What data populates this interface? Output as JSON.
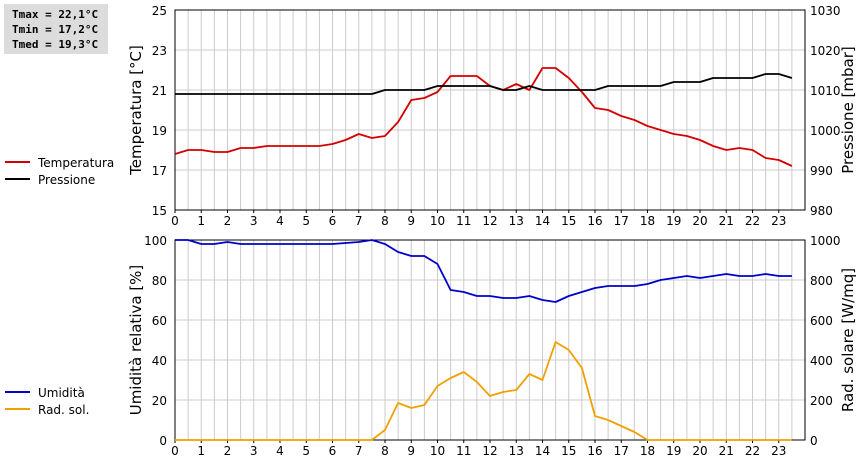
{
  "stats": {
    "tmax": "Tmax = 22,1°C",
    "tmin": "Tmin = 17,2°C",
    "tmed": "Tmed = 19,3°C"
  },
  "colors": {
    "temperatura": "#d40000",
    "pressione": "#000000",
    "umidita": "#0000c8",
    "radiazione": "#f0a000",
    "grid": "#cccccc"
  },
  "chart_data": [
    {
      "type": "line",
      "x_ticks": [
        "0",
        "1",
        "2",
        "3",
        "4",
        "5",
        "6",
        "7",
        "8",
        "9",
        "10",
        "11",
        "12",
        "13",
        "14",
        "15",
        "16",
        "17",
        "18",
        "19",
        "20",
        "21",
        "22",
        "23"
      ],
      "xlim": [
        0,
        24
      ],
      "ylabel": "Temperatura [°C]",
      "ylim": [
        15,
        25
      ],
      "y_ticks": [
        "15",
        "17",
        "19",
        "21",
        "23",
        "25"
      ],
      "y2label": "Pressione [mbar]",
      "y2lim": [
        980,
        1030
      ],
      "y2_ticks": [
        "980",
        "990",
        "1000",
        "1010",
        "1020",
        "1030"
      ],
      "legend": [
        "Temperatura",
        "Pressione"
      ],
      "series": [
        {
          "name": "Temperatura",
          "axis": "left",
          "x": [
            0,
            0.5,
            1,
            1.5,
            2,
            2.5,
            3,
            3.5,
            4,
            4.5,
            5,
            5.5,
            6,
            6.5,
            7,
            7.5,
            8,
            8.5,
            9,
            9.5,
            10,
            10.5,
            11,
            11.5,
            12,
            12.5,
            13,
            13.5,
            14,
            14.5,
            15,
            15.5,
            16,
            16.5,
            17,
            17.5,
            18,
            18.5,
            19,
            19.5,
            20,
            20.5,
            21,
            21.5,
            22,
            22.5,
            23,
            23.5
          ],
          "values": [
            17.8,
            18.0,
            18.0,
            17.9,
            17.9,
            18.1,
            18.1,
            18.2,
            18.2,
            18.2,
            18.2,
            18.2,
            18.3,
            18.5,
            18.8,
            18.6,
            18.7,
            19.4,
            20.5,
            20.6,
            20.9,
            21.7,
            21.7,
            21.7,
            21.2,
            21.0,
            21.3,
            21.0,
            22.1,
            22.1,
            21.6,
            20.9,
            20.1,
            20.0,
            19.7,
            19.5,
            19.2,
            19.0,
            18.8,
            18.7,
            18.5,
            18.2,
            18.0,
            18.1,
            18.0,
            17.6,
            17.5,
            17.2
          ]
        },
        {
          "name": "Pressione",
          "axis": "right",
          "x": [
            0,
            1,
            2,
            3,
            4,
            5,
            6,
            7,
            7.5,
            8,
            9,
            9.5,
            10,
            10.5,
            11,
            12,
            12.5,
            13,
            13.5,
            14,
            15,
            16,
            16.5,
            17,
            18,
            18.5,
            19,
            20,
            20.5,
            21,
            22,
            22.5,
            23,
            23.5
          ],
          "values": [
            1009,
            1009,
            1009,
            1009,
            1009,
            1009,
            1009,
            1009,
            1009,
            1010,
            1010,
            1010,
            1011,
            1011,
            1011,
            1011,
            1010,
            1010,
            1011,
            1010,
            1010,
            1010,
            1011,
            1011,
            1011,
            1011,
            1012,
            1012,
            1013,
            1013,
            1013,
            1014,
            1014,
            1013
          ]
        }
      ]
    },
    {
      "type": "line",
      "x_ticks": [
        "0",
        "1",
        "2",
        "3",
        "4",
        "5",
        "6",
        "7",
        "8",
        "9",
        "10",
        "11",
        "12",
        "13",
        "14",
        "15",
        "16",
        "17",
        "18",
        "19",
        "20",
        "21",
        "22",
        "23"
      ],
      "xlim": [
        0,
        24
      ],
      "ylabel": "Umidità relativa [%]",
      "ylim": [
        0,
        100
      ],
      "y_ticks": [
        "0",
        "20",
        "40",
        "60",
        "80",
        "100"
      ],
      "y2label": "Rad. solare [W/mq]",
      "y2lim": [
        0,
        1000
      ],
      "y2_ticks": [
        "0",
        "200",
        "400",
        "600",
        "800",
        "1000"
      ],
      "legend": [
        "Umidità",
        "Rad. sol."
      ],
      "series": [
        {
          "name": "Umidità",
          "axis": "left",
          "x": [
            0,
            0.5,
            1,
            1.5,
            2,
            2.5,
            3,
            4,
            5,
            6,
            7,
            7.5,
            8,
            8.5,
            9,
            9.5,
            10,
            10.5,
            11,
            11.5,
            12,
            12.5,
            13,
            13.5,
            14,
            14.5,
            15,
            15.5,
            16,
            16.5,
            17,
            17.5,
            18,
            18.5,
            19,
            19.5,
            20,
            20.5,
            21,
            21.5,
            22,
            22.5,
            23,
            23.5
          ],
          "values": [
            100,
            100,
            98,
            98,
            99,
            98,
            98,
            98,
            98,
            98,
            99,
            100,
            98,
            94,
            92,
            92,
            88,
            75,
            74,
            72,
            72,
            71,
            71,
            72,
            70,
            69,
            72,
            74,
            76,
            77,
            77,
            77,
            78,
            80,
            81,
            82,
            81,
            82,
            83,
            82,
            82,
            83,
            82,
            82
          ]
        },
        {
          "name": "Rad. sol.",
          "axis": "right",
          "x": [
            0,
            1,
            2,
            3,
            4,
            5,
            6,
            7,
            7.5,
            8,
            8.5,
            9,
            9.5,
            10,
            10.5,
            11,
            11.5,
            12,
            12.5,
            13,
            13.5,
            14,
            14.5,
            15,
            15.5,
            16,
            16.5,
            17,
            17.5,
            18,
            19,
            20,
            21,
            22,
            23,
            23.5
          ],
          "values": [
            0,
            0,
            0,
            0,
            0,
            0,
            0,
            0,
            0,
            50,
            185,
            160,
            175,
            270,
            310,
            340,
            290,
            220,
            240,
            250,
            330,
            300,
            490,
            450,
            360,
            120,
            100,
            70,
            40,
            0,
            0,
            0,
            0,
            0,
            0,
            0
          ]
        }
      ]
    }
  ]
}
